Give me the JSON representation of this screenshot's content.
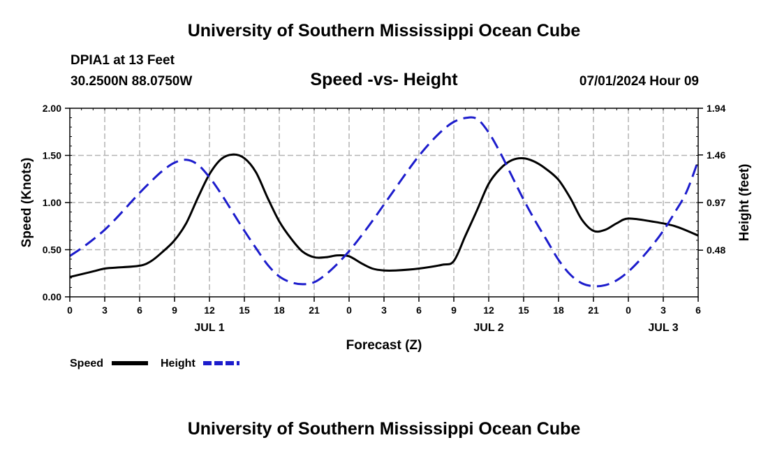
{
  "header": {
    "title": "University of Southern Mississippi Ocean Cube",
    "station": "DPIA1 at 13 Feet",
    "coords": "30.2500N  88.0750W",
    "subtitle": "Speed -vs- Height",
    "datetime": "07/01/2024 Hour 09"
  },
  "footer": {
    "title": "University of Southern Mississippi Ocean Cube"
  },
  "colors": {
    "speed": "#000000",
    "height": "#1c1ccc",
    "grid": "#b4b4b4"
  },
  "chart_data": {
    "type": "line",
    "xlabel": "Forecast (Z)",
    "ylabel_left": "Speed (Knots)",
    "ylabel_right": "Height (feet)",
    "x_unit": "hours since 07/01 00Z",
    "xlim": [
      0,
      54
    ],
    "ylim_left": [
      0,
      2
    ],
    "ylim_right": [
      0,
      1.94
    ],
    "x_ticks": [
      {
        "x": 0,
        "label": "0"
      },
      {
        "x": 3,
        "label": "3"
      },
      {
        "x": 6,
        "label": "6"
      },
      {
        "x": 9,
        "label": "9"
      },
      {
        "x": 12,
        "label": "12"
      },
      {
        "x": 15,
        "label": "15"
      },
      {
        "x": 18,
        "label": "18"
      },
      {
        "x": 21,
        "label": "21"
      },
      {
        "x": 24,
        "label": "0"
      },
      {
        "x": 27,
        "label": "3"
      },
      {
        "x": 30,
        "label": "6"
      },
      {
        "x": 33,
        "label": "9"
      },
      {
        "x": 36,
        "label": "12"
      },
      {
        "x": 39,
        "label": "15"
      },
      {
        "x": 42,
        "label": "18"
      },
      {
        "x": 45,
        "label": "21"
      },
      {
        "x": 48,
        "label": "0"
      },
      {
        "x": 51,
        "label": "3"
      },
      {
        "x": 54,
        "label": "6"
      }
    ],
    "day_labels": [
      {
        "x": 12,
        "label": "JUL 1"
      },
      {
        "x": 36,
        "label": "JUL 2"
      },
      {
        "x": 51,
        "label": "JUL 3"
      }
    ],
    "y_left_ticks": [
      "0.00",
      "0.50",
      "1.00",
      "1.50",
      "2.00"
    ],
    "y_left_tick_values": [
      0,
      0.5,
      1,
      1.5,
      2
    ],
    "y_right_ticks": [
      "0.48",
      "0.97",
      "1.46",
      "1.94"
    ],
    "y_right_tick_values": [
      0.48,
      0.97,
      1.46,
      1.94
    ],
    "series": [
      {
        "name": "Speed",
        "axis": "left",
        "style": "solid",
        "x": [
          0,
          2,
          3,
          4,
          6,
          7,
          8,
          9,
          10,
          11,
          12,
          13,
          14,
          15,
          16,
          17,
          18,
          19,
          20,
          21,
          22,
          23,
          24,
          25,
          26,
          27,
          28,
          30,
          32,
          33,
          34,
          35,
          36,
          37,
          38,
          39,
          40,
          41,
          42,
          43,
          44,
          45,
          46,
          47,
          48,
          50,
          52,
          54
        ],
        "values": [
          0.21,
          0.27,
          0.3,
          0.31,
          0.33,
          0.38,
          0.48,
          0.6,
          0.78,
          1.05,
          1.3,
          1.46,
          1.51,
          1.47,
          1.32,
          1.05,
          0.8,
          0.62,
          0.48,
          0.42,
          0.42,
          0.44,
          0.43,
          0.36,
          0.3,
          0.28,
          0.28,
          0.3,
          0.34,
          0.38,
          0.65,
          0.92,
          1.2,
          1.36,
          1.45,
          1.47,
          1.43,
          1.35,
          1.24,
          1.05,
          0.82,
          0.7,
          0.71,
          0.78,
          0.83,
          0.8,
          0.75,
          0.65
        ]
      },
      {
        "name": "Height",
        "axis": "right",
        "style": "dashed",
        "x": [
          0,
          1,
          2,
          3,
          4,
          5,
          6,
          7,
          8,
          9,
          10,
          11,
          12,
          13,
          14,
          15,
          16,
          17,
          18,
          19,
          20,
          21,
          22,
          23,
          24,
          25,
          26,
          27,
          28,
          29,
          30,
          31,
          32,
          33,
          34,
          35,
          36,
          37,
          38,
          39,
          40,
          41,
          42,
          43,
          44,
          45,
          46,
          47,
          48,
          49,
          50,
          51,
          52,
          53,
          54
        ],
        "values": [
          0.42,
          0.5,
          0.59,
          0.69,
          0.81,
          0.94,
          1.07,
          1.19,
          1.3,
          1.38,
          1.41,
          1.36,
          1.23,
          1.06,
          0.87,
          0.68,
          0.5,
          0.33,
          0.21,
          0.15,
          0.13,
          0.15,
          0.23,
          0.34,
          0.47,
          0.62,
          0.78,
          0.95,
          1.12,
          1.29,
          1.45,
          1.59,
          1.71,
          1.8,
          1.84,
          1.83,
          1.69,
          1.48,
          1.24,
          1.0,
          0.78,
          0.58,
          0.38,
          0.23,
          0.14,
          0.11,
          0.12,
          0.17,
          0.26,
          0.38,
          0.52,
          0.68,
          0.87,
          1.08,
          1.4
        ]
      }
    ],
    "legend": [
      {
        "name": "Speed",
        "style": "solid"
      },
      {
        "name": "Height",
        "style": "dashed"
      }
    ]
  }
}
